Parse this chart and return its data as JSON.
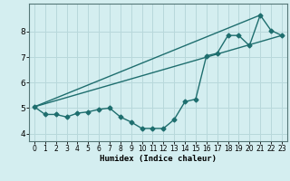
{
  "title": "",
  "xlabel": "Humidex (Indice chaleur)",
  "ylabel": "",
  "bg_color": "#d4eef0",
  "grid_color": "#b8d8db",
  "line_color": "#1e6e6e",
  "ylim": [
    3.7,
    9.1
  ],
  "xlim": [
    -0.5,
    23.5
  ],
  "yticks": [
    4,
    5,
    6,
    7,
    8
  ],
  "xticks": [
    0,
    1,
    2,
    3,
    4,
    5,
    6,
    7,
    8,
    9,
    10,
    11,
    12,
    13,
    14,
    15,
    16,
    17,
    18,
    19,
    20,
    21,
    22,
    23
  ],
  "series1_x": [
    0,
    1,
    2,
    3,
    4,
    5,
    6,
    7,
    8,
    9,
    10,
    11,
    12,
    13,
    14,
    15,
    16,
    17,
    18,
    19,
    20,
    21,
    22,
    23
  ],
  "series1_y": [
    5.05,
    4.75,
    4.75,
    4.65,
    4.8,
    4.85,
    4.95,
    5.0,
    4.65,
    4.45,
    4.2,
    4.2,
    4.2,
    4.55,
    5.25,
    5.35,
    7.05,
    7.15,
    7.85,
    7.85,
    7.45,
    8.65,
    8.05,
    7.85
  ],
  "series2_x": [
    0,
    23
  ],
  "series2_y": [
    5.05,
    7.85
  ],
  "series3_x": [
    0,
    21
  ],
  "series3_y": [
    5.05,
    8.65
  ]
}
